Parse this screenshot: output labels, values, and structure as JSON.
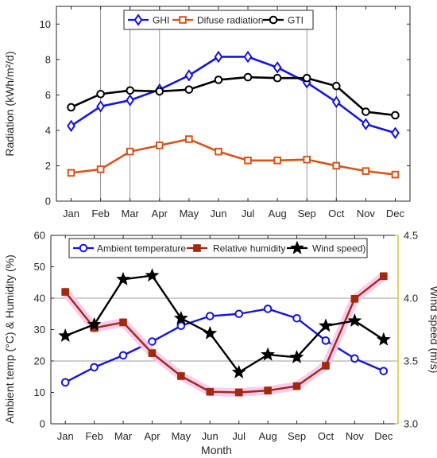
{
  "chart_data": [
    {
      "type": "line",
      "categories": [
        "Jan",
        "Feb",
        "Mar",
        "Apr",
        "May",
        "Jun",
        "Jul",
        "Aug",
        "Sep",
        "Oct",
        "Nov",
        "Dec"
      ],
      "ylabel": "Radiation (kWh/m²/d)",
      "xlabel": "",
      "ylim": [
        0,
        11
      ],
      "yticks": [
        0,
        2,
        4,
        6,
        8,
        10
      ],
      "grid": "vertical lines at Feb, Mar, Apr, Sep, Oct",
      "legend_position": "top-center",
      "series": [
        {
          "name": "GHI",
          "color": "#1414e0",
          "marker": "diamond",
          "values": [
            4.25,
            5.35,
            5.7,
            6.3,
            7.1,
            8.15,
            8.15,
            7.55,
            6.7,
            5.6,
            4.35,
            3.85
          ]
        },
        {
          "name": "Difuse radiation",
          "color": "#d95319",
          "marker": "square",
          "values": [
            1.6,
            1.8,
            2.8,
            3.15,
            3.5,
            2.8,
            2.3,
            2.3,
            2.35,
            2.0,
            1.7,
            1.5
          ]
        },
        {
          "name": "GTI",
          "color": "#000000",
          "marker": "circle",
          "values": [
            5.3,
            6.05,
            6.25,
            6.2,
            6.3,
            6.85,
            7.0,
            6.95,
            6.95,
            6.5,
            5.05,
            4.85
          ]
        }
      ]
    },
    {
      "type": "line",
      "categories": [
        "Jan",
        "Feb",
        "Mar",
        "Apr",
        "May",
        "Jun",
        "Jul",
        "Aug",
        "Sep",
        "Oct",
        "Nov",
        "Dec"
      ],
      "xlabel": "Month",
      "ylabel": "Ambient temp (°C) & Humidity (%)",
      "ylim": [
        0,
        60
      ],
      "yticks": [
        0,
        10,
        20,
        30,
        40,
        50,
        60
      ],
      "y2label": "Wind speed (m/s)",
      "y2lim": [
        3.0,
        4.5
      ],
      "y2ticks": [
        "3.0",
        "3.5",
        "4.0",
        "4.5"
      ],
      "grid": "horizontal lines at 20 and 40",
      "legend_position": "top",
      "series": [
        {
          "name": "Ambient temperature",
          "color": "#1414e0",
          "marker": "circle",
          "axis": "left",
          "values": [
            13.2,
            18.0,
            21.8,
            26.2,
            31.2,
            34.3,
            35.0,
            36.6,
            33.6,
            26.5,
            20.8,
            16.8
          ]
        },
        {
          "name": "Relative humidity",
          "color": "#a0290e",
          "marker": "square",
          "axis": "left",
          "values": [
            42.0,
            30.5,
            32.3,
            22.5,
            15.2,
            10.2,
            10.0,
            10.6,
            12.0,
            18.5,
            39.8,
            47.0
          ]
        },
        {
          "name": "Wind speed)",
          "color": "#000000",
          "marker": "star",
          "axis": "right",
          "values": [
            3.7,
            3.79,
            4.15,
            4.18,
            3.84,
            3.72,
            3.41,
            3.55,
            3.53,
            3.78,
            3.82,
            3.67
          ]
        }
      ]
    }
  ]
}
